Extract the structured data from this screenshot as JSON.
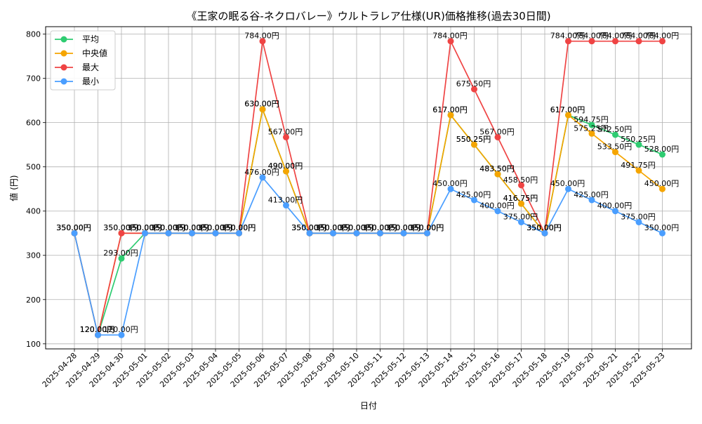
{
  "chart_data": {
    "type": "line",
    "title": "《王家の眠る谷-ネクロバレー》ウルトラレア仕様(UR)価格推移(過去30日間)",
    "xlabel": "日付",
    "ylabel": "値 (円)",
    "ylim": [
      100,
      800
    ],
    "yticks": [
      100,
      200,
      300,
      400,
      500,
      600,
      700,
      800
    ],
    "grid": true,
    "legend_position": "top-left",
    "value_suffix": "円",
    "categories": [
      "2025-04-28",
      "2025-04-29",
      "2025-04-30",
      "2025-05-01",
      "2025-05-02",
      "2025-05-03",
      "2025-05-04",
      "2025-05-05",
      "2025-05-06",
      "2025-05-07",
      "2025-05-08",
      "2025-05-09",
      "2025-05-10",
      "2025-05-11",
      "2025-05-12",
      "2025-05-13",
      "2025-05-14",
      "2025-05-15",
      "2025-05-16",
      "2025-05-17",
      "2025-05-18",
      "2025-05-19",
      "2025-05-20",
      "2025-05-21",
      "2025-05-22",
      "2025-05-23"
    ],
    "series": [
      {
        "name": "平均",
        "color": "#2ecc71",
        "values": [
          350,
          120,
          293,
          350,
          350,
          350,
          350,
          350,
          630,
          490,
          350,
          350,
          350,
          350,
          350,
          350,
          617,
          550.25,
          483.5,
          416.75,
          350,
          617,
          594.75,
          572.5,
          550.25,
          528
        ]
      },
      {
        "name": "中央値",
        "color": "#f5a500",
        "values": [
          350,
          120,
          350,
          350,
          350,
          350,
          350,
          350,
          630,
          490,
          350,
          350,
          350,
          350,
          350,
          350,
          617,
          550.25,
          483.5,
          416.75,
          350,
          617,
          575.25,
          533.5,
          491.75,
          450
        ]
      },
      {
        "name": "最大",
        "color": "#ef4444",
        "values": [
          350,
          120,
          350,
          350,
          350,
          350,
          350,
          350,
          784,
          567,
          350,
          350,
          350,
          350,
          350,
          350,
          784,
          675.5,
          567,
          458.5,
          350,
          784,
          784,
          784,
          784,
          784
        ]
      },
      {
        "name": "最小",
        "color": "#4a9eff",
        "values": [
          350,
          120,
          120,
          350,
          350,
          350,
          350,
          350,
          476,
          413,
          350,
          350,
          350,
          350,
          350,
          350,
          450,
          425,
          400,
          375,
          350,
          450,
          425,
          400,
          375,
          350
        ]
      }
    ]
  }
}
